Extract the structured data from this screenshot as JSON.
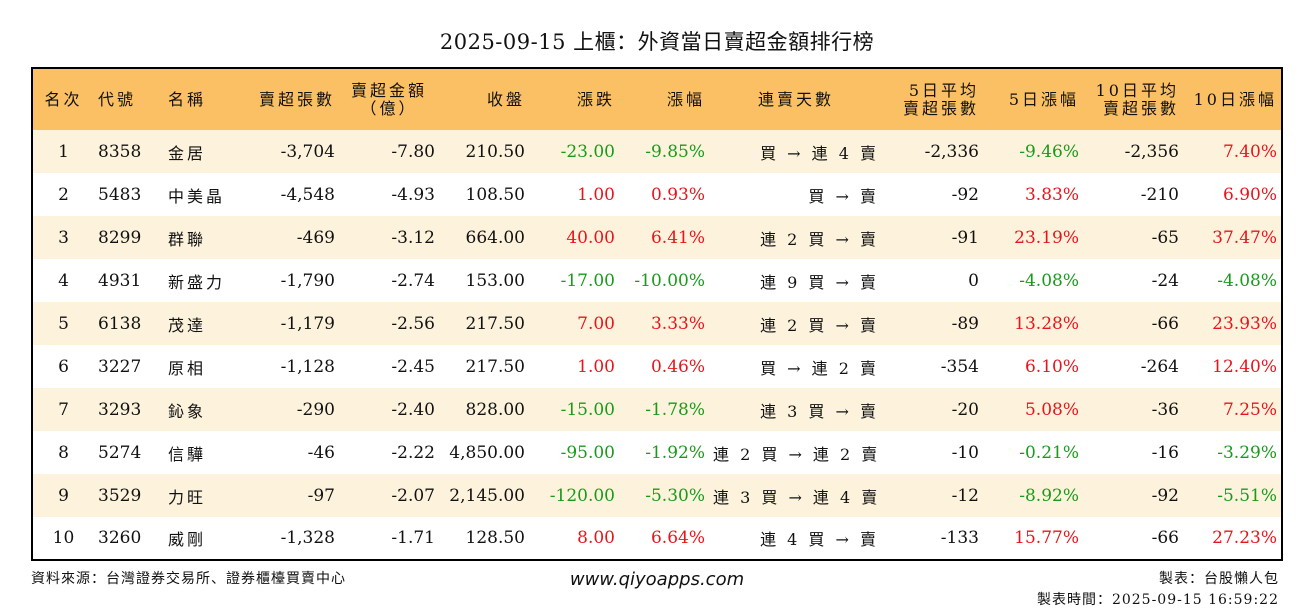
{
  "title": "2025-09-15 上櫃：外資當日賣超金額排行榜",
  "columns": {
    "rank": "名次",
    "code": "代號",
    "name": "名稱",
    "sell_shares": "賣超張數",
    "sell_amount_1": "賣超金額",
    "sell_amount_2": "（億）",
    "close": "收盤",
    "change": "漲跌",
    "change_pct": "漲幅",
    "days": "連賣天數",
    "avg5_1": "5日平均",
    "avg5_2": "賣超張數",
    "pct5": "5日漲幅",
    "avg10_1": "10日平均",
    "avg10_2": "賣超張數",
    "pct10": "10日漲幅"
  },
  "rows": [
    {
      "rank": "1",
      "code": "8358",
      "name": "金居",
      "sell_shares": "-3,704",
      "sell_amount": "-7.80",
      "close": "210.50",
      "change": "-23.00",
      "change_pct": "-9.85%",
      "days": "買 → 連 4 賣",
      "avg5": "-2,336",
      "pct5": "-9.46%",
      "avg10": "-2,356",
      "pct10": "7.40%"
    },
    {
      "rank": "2",
      "code": "5483",
      "name": "中美晶",
      "sell_shares": "-4,548",
      "sell_amount": "-4.93",
      "close": "108.50",
      "change": "1.00",
      "change_pct": "0.93%",
      "days": "買 → 賣",
      "avg5": "-92",
      "pct5": "3.83%",
      "avg10": "-210",
      "pct10": "6.90%"
    },
    {
      "rank": "3",
      "code": "8299",
      "name": "群聯",
      "sell_shares": "-469",
      "sell_amount": "-3.12",
      "close": "664.00",
      "change": "40.00",
      "change_pct": "6.41%",
      "days": "連 2 買 → 賣",
      "avg5": "-91",
      "pct5": "23.19%",
      "avg10": "-65",
      "pct10": "37.47%"
    },
    {
      "rank": "4",
      "code": "4931",
      "name": "新盛力",
      "sell_shares": "-1,790",
      "sell_amount": "-2.74",
      "close": "153.00",
      "change": "-17.00",
      "change_pct": "-10.00%",
      "days": "連 9 買 → 賣",
      "avg5": "0",
      "pct5": "-4.08%",
      "avg10": "-24",
      "pct10": "-4.08%"
    },
    {
      "rank": "5",
      "code": "6138",
      "name": "茂達",
      "sell_shares": "-1,179",
      "sell_amount": "-2.56",
      "close": "217.50",
      "change": "7.00",
      "change_pct": "3.33%",
      "days": "連 2 買 → 賣",
      "avg5": "-89",
      "pct5": "13.28%",
      "avg10": "-66",
      "pct10": "23.93%"
    },
    {
      "rank": "6",
      "code": "3227",
      "name": "原相",
      "sell_shares": "-1,128",
      "sell_amount": "-2.45",
      "close": "217.50",
      "change": "1.00",
      "change_pct": "0.46%",
      "days": "買 → 連 2 賣",
      "avg5": "-354",
      "pct5": "6.10%",
      "avg10": "-264",
      "pct10": "12.40%"
    },
    {
      "rank": "7",
      "code": "3293",
      "name": "鈊象",
      "sell_shares": "-290",
      "sell_amount": "-2.40",
      "close": "828.00",
      "change": "-15.00",
      "change_pct": "-1.78%",
      "days": "連 3 買 → 賣",
      "avg5": "-20",
      "pct5": "5.08%",
      "avg10": "-36",
      "pct10": "7.25%"
    },
    {
      "rank": "8",
      "code": "5274",
      "name": "信驊",
      "sell_shares": "-46",
      "sell_amount": "-2.22",
      "close": "4,850.00",
      "change": "-95.00",
      "change_pct": "-1.92%",
      "days": "連 2 買 → 連 2 賣",
      "avg5": "-10",
      "pct5": "-0.21%",
      "avg10": "-16",
      "pct10": "-3.29%"
    },
    {
      "rank": "9",
      "code": "3529",
      "name": "力旺",
      "sell_shares": "-97",
      "sell_amount": "-2.07",
      "close": "2,145.00",
      "change": "-120.00",
      "change_pct": "-5.30%",
      "days": "連 3 買 → 連 4 賣",
      "avg5": "-12",
      "pct5": "-8.92%",
      "avg10": "-92",
      "pct10": "-5.51%"
    },
    {
      "rank": "10",
      "code": "3260",
      "name": "威剛",
      "sell_shares": "-1,328",
      "sell_amount": "-1.71",
      "close": "128.50",
      "change": "8.00",
      "change_pct": "6.64%",
      "days": "連 4 買 → 賣",
      "avg5": "-133",
      "pct5": "15.77%",
      "avg10": "-66",
      "pct10": "27.23%"
    }
  ],
  "footer": {
    "source": "資料來源：台灣證券交易所、證券櫃檯買賣中心",
    "website": "www.qiyoapps.com",
    "maker": "製表：台股懶人包",
    "time": "製表時間：2025-09-15 16:59:22"
  },
  "colors": {
    "header_bg": "#fbc063",
    "odd_row_bg": "#fdf3dd",
    "positive": "#e8141b",
    "negative": "#1a9a1a"
  }
}
